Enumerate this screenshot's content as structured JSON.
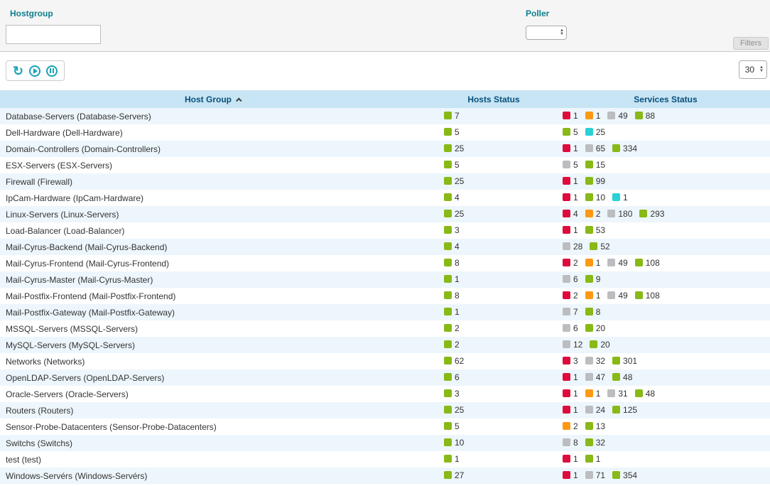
{
  "filters": {
    "hostgroup_label": "Hostgroup",
    "hostgroup_value": "",
    "poller_label": "Poller",
    "poller_value": "",
    "filters_tab": "Filters"
  },
  "toolbar": {
    "refresh_icon": "refresh",
    "play_icon": "play",
    "pause_icon": "pause",
    "page_size": "30"
  },
  "status_colors": {
    "green": "#88b917",
    "red": "#e00b3d",
    "orange": "#ff9913",
    "gray": "#bcbdc0",
    "cyan": "#2ad1d4"
  },
  "table": {
    "columns": [
      "Host Group",
      "Hosts Status",
      "Services Status"
    ],
    "sort_column": "Host Group",
    "sort_direction": "asc",
    "rows": [
      {
        "name": "Database-Servers (Database-Servers)",
        "hosts": [
          {
            "color": "green",
            "count": "7"
          }
        ],
        "services": [
          {
            "color": "red",
            "count": "1"
          },
          {
            "color": "orange",
            "count": "1"
          },
          {
            "color": "gray",
            "count": "49"
          },
          {
            "color": "green",
            "count": "88"
          }
        ]
      },
      {
        "name": "Dell-Hardware (Dell-Hardware)",
        "hosts": [
          {
            "color": "green",
            "count": "5"
          }
        ],
        "services": [
          {
            "color": "green",
            "count": "5"
          },
          {
            "color": "cyan",
            "count": "25"
          }
        ]
      },
      {
        "name": "Domain-Controllers (Domain-Controllers)",
        "hosts": [
          {
            "color": "green",
            "count": "25"
          }
        ],
        "services": [
          {
            "color": "red",
            "count": "1"
          },
          {
            "color": "gray",
            "count": "65"
          },
          {
            "color": "green",
            "count": "334"
          }
        ]
      },
      {
        "name": "ESX-Servers (ESX-Servers)",
        "hosts": [
          {
            "color": "green",
            "count": "5"
          }
        ],
        "services": [
          {
            "color": "gray",
            "count": "5"
          },
          {
            "color": "green",
            "count": "15"
          }
        ]
      },
      {
        "name": "Firewall (Firewall)",
        "hosts": [
          {
            "color": "green",
            "count": "25"
          }
        ],
        "services": [
          {
            "color": "red",
            "count": "1"
          },
          {
            "color": "green",
            "count": "99"
          }
        ]
      },
      {
        "name": "IpCam-Hardware (IpCam-Hardware)",
        "hosts": [
          {
            "color": "green",
            "count": "4"
          }
        ],
        "services": [
          {
            "color": "red",
            "count": "1"
          },
          {
            "color": "green",
            "count": "10"
          },
          {
            "color": "cyan",
            "count": "1"
          }
        ]
      },
      {
        "name": "Linux-Servers (Linux-Servers)",
        "hosts": [
          {
            "color": "green",
            "count": "25"
          }
        ],
        "services": [
          {
            "color": "red",
            "count": "4"
          },
          {
            "color": "orange",
            "count": "2"
          },
          {
            "color": "gray",
            "count": "180"
          },
          {
            "color": "green",
            "count": "293"
          }
        ]
      },
      {
        "name": "Load-Balancer (Load-Balancer)",
        "hosts": [
          {
            "color": "green",
            "count": "3"
          }
        ],
        "services": [
          {
            "color": "red",
            "count": "1"
          },
          {
            "color": "green",
            "count": "53"
          }
        ]
      },
      {
        "name": "Mail-Cyrus-Backend (Mail-Cyrus-Backend)",
        "hosts": [
          {
            "color": "green",
            "count": "4"
          }
        ],
        "services": [
          {
            "color": "gray",
            "count": "28"
          },
          {
            "color": "green",
            "count": "52"
          }
        ]
      },
      {
        "name": "Mail-Cyrus-Frontend (Mail-Cyrus-Frontend)",
        "hosts": [
          {
            "color": "green",
            "count": "8"
          }
        ],
        "services": [
          {
            "color": "red",
            "count": "2"
          },
          {
            "color": "orange",
            "count": "1"
          },
          {
            "color": "gray",
            "count": "49"
          },
          {
            "color": "green",
            "count": "108"
          }
        ]
      },
      {
        "name": "Mail-Cyrus-Master (Mail-Cyrus-Master)",
        "hosts": [
          {
            "color": "green",
            "count": "1"
          }
        ],
        "services": [
          {
            "color": "gray",
            "count": "6"
          },
          {
            "color": "green",
            "count": "9"
          }
        ]
      },
      {
        "name": "Mail-Postfix-Frontend (Mail-Postfix-Frontend)",
        "hosts": [
          {
            "color": "green",
            "count": "8"
          }
        ],
        "services": [
          {
            "color": "red",
            "count": "2"
          },
          {
            "color": "orange",
            "count": "1"
          },
          {
            "color": "gray",
            "count": "49"
          },
          {
            "color": "green",
            "count": "108"
          }
        ]
      },
      {
        "name": "Mail-Postfix-Gateway (Mail-Postfix-Gateway)",
        "hosts": [
          {
            "color": "green",
            "count": "1"
          }
        ],
        "services": [
          {
            "color": "gray",
            "count": "7"
          },
          {
            "color": "green",
            "count": "8"
          }
        ]
      },
      {
        "name": "MSSQL-Servers (MSSQL-Servers)",
        "hosts": [
          {
            "color": "green",
            "count": "2"
          }
        ],
        "services": [
          {
            "color": "gray",
            "count": "6"
          },
          {
            "color": "green",
            "count": "20"
          }
        ]
      },
      {
        "name": "MySQL-Servers (MySQL-Servers)",
        "hosts": [
          {
            "color": "green",
            "count": "2"
          }
        ],
        "services": [
          {
            "color": "gray",
            "count": "12"
          },
          {
            "color": "green",
            "count": "20"
          }
        ]
      },
      {
        "name": "Networks (Networks)",
        "hosts": [
          {
            "color": "green",
            "count": "62"
          }
        ],
        "services": [
          {
            "color": "red",
            "count": "3"
          },
          {
            "color": "gray",
            "count": "32"
          },
          {
            "color": "green",
            "count": "301"
          }
        ]
      },
      {
        "name": "OpenLDAP-Servers (OpenLDAP-Servers)",
        "hosts": [
          {
            "color": "green",
            "count": "6"
          }
        ],
        "services": [
          {
            "color": "red",
            "count": "1"
          },
          {
            "color": "gray",
            "count": "47"
          },
          {
            "color": "green",
            "count": "48"
          }
        ]
      },
      {
        "name": "Oracle-Servers (Oracle-Servers)",
        "hosts": [
          {
            "color": "green",
            "count": "3"
          }
        ],
        "services": [
          {
            "color": "red",
            "count": "1"
          },
          {
            "color": "orange",
            "count": "1"
          },
          {
            "color": "gray",
            "count": "31"
          },
          {
            "color": "green",
            "count": "48"
          }
        ]
      },
      {
        "name": "Routers (Routers)",
        "hosts": [
          {
            "color": "green",
            "count": "25"
          }
        ],
        "services": [
          {
            "color": "red",
            "count": "1"
          },
          {
            "color": "gray",
            "count": "24"
          },
          {
            "color": "green",
            "count": "125"
          }
        ]
      },
      {
        "name": "Sensor-Probe-Datacenters (Sensor-Probe-Datacenters)",
        "hosts": [
          {
            "color": "green",
            "count": "5"
          }
        ],
        "services": [
          {
            "color": "orange",
            "count": "2"
          },
          {
            "color": "green",
            "count": "13"
          }
        ]
      },
      {
        "name": "Switchs (Switchs)",
        "hosts": [
          {
            "color": "green",
            "count": "10"
          }
        ],
        "services": [
          {
            "color": "gray",
            "count": "8"
          },
          {
            "color": "green",
            "count": "32"
          }
        ]
      },
      {
        "name": "test (test)",
        "hosts": [
          {
            "color": "green",
            "count": "1"
          }
        ],
        "services": [
          {
            "color": "red",
            "count": "1"
          },
          {
            "color": "green",
            "count": "1"
          }
        ]
      },
      {
        "name": "Windows-Servérs (Windows-Servérs)",
        "hosts": [
          {
            "color": "green",
            "count": "27"
          }
        ],
        "services": [
          {
            "color": "red",
            "count": "1"
          },
          {
            "color": "gray",
            "count": "71"
          },
          {
            "color": "green",
            "count": "354"
          }
        ]
      }
    ]
  }
}
